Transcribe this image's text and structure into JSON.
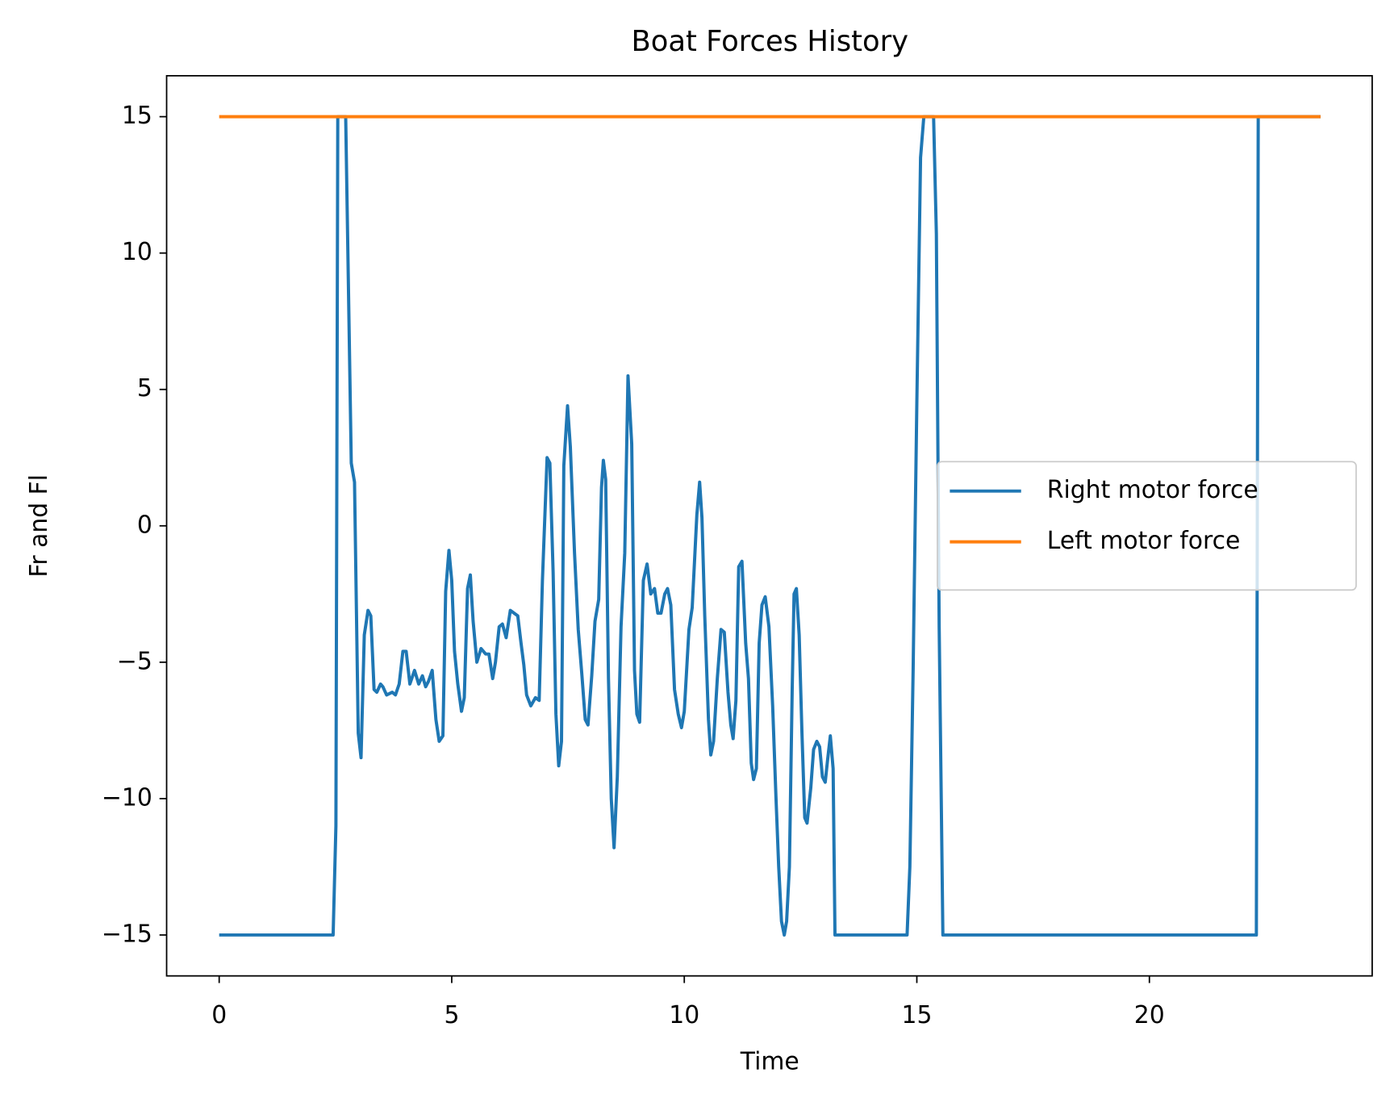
{
  "chart_data": {
    "type": "line",
    "title": "Boat Forces History",
    "x_label": "Time",
    "y_label": "Fr and Fl",
    "xlim": [
      -1.13,
      24.79
    ],
    "ylim": [
      -16.5,
      16.5
    ],
    "xticks": [
      0,
      5,
      10,
      15,
      20
    ],
    "yticks": [
      {
        "value": -15,
        "label": "−15"
      },
      {
        "value": -10,
        "label": "−10"
      },
      {
        "value": -5,
        "label": "−5"
      },
      0,
      5,
      10,
      15
    ],
    "grid": false,
    "legend_position": "center right",
    "series": [
      {
        "name": "Right motor force",
        "color": "#1f77b4",
        "x": [
          0,
          2.45,
          2.51,
          2.55,
          2.72,
          2.84,
          2.91,
          2.99,
          3.05,
          3.12,
          3.2,
          3.26,
          3.33,
          3.39,
          3.47,
          3.52,
          3.6,
          3.72,
          3.79,
          3.87,
          3.95,
          4.02,
          4.1,
          4.2,
          4.29,
          4.37,
          4.44,
          4.5,
          4.58,
          4.66,
          4.73,
          4.81,
          4.87,
          4.94,
          5.0,
          5.06,
          5.13,
          5.21,
          5.27,
          5.34,
          5.4,
          5.46,
          5.54,
          5.63,
          5.73,
          5.8,
          5.88,
          5.94,
          6.02,
          6.09,
          6.17,
          6.26,
          6.34,
          6.42,
          6.49,
          6.55,
          6.61,
          6.7,
          6.8,
          6.88,
          6.95,
          7.05,
          7.11,
          7.18,
          7.24,
          7.3,
          7.36,
          7.41,
          7.49,
          7.55,
          7.64,
          7.72,
          7.8,
          7.87,
          7.93,
          8.01,
          8.08,
          8.16,
          8.22,
          8.26,
          8.31,
          8.37,
          8.43,
          8.49,
          8.56,
          8.64,
          8.72,
          8.79,
          8.87,
          8.93,
          8.98,
          9.04,
          9.12,
          9.2,
          9.28,
          9.36,
          9.43,
          9.5,
          9.58,
          9.64,
          9.71,
          9.79,
          9.87,
          9.94,
          10.0,
          10.1,
          10.17,
          10.27,
          10.33,
          10.38,
          10.44,
          10.52,
          10.57,
          10.63,
          10.71,
          10.79,
          10.86,
          10.94,
          11.0,
          11.05,
          11.11,
          11.17,
          11.24,
          11.32,
          11.38,
          11.44,
          11.49,
          11.55,
          11.61,
          11.67,
          11.74,
          11.82,
          11.9,
          11.97,
          12.03,
          12.09,
          12.15,
          12.2,
          12.26,
          12.32,
          12.36,
          12.41,
          12.47,
          12.53,
          12.59,
          12.64,
          12.72,
          12.78,
          12.85,
          12.91,
          12.97,
          13.03,
          13.08,
          13.14,
          13.2,
          13.24,
          14.79,
          14.85,
          14.92,
          15.0,
          15.08,
          15.15,
          15.36,
          15.42,
          15.48,
          15.56,
          22.3,
          22.34,
          23.68
        ],
        "values": [
          -15,
          -15,
          -11,
          15,
          15,
          2.3,
          1.6,
          -7.6,
          -8.5,
          -4.0,
          -3.1,
          -3.3,
          -6.0,
          -6.1,
          -5.8,
          -5.9,
          -6.2,
          -6.1,
          -6.2,
          -5.8,
          -4.6,
          -4.6,
          -5.8,
          -5.3,
          -5.8,
          -5.5,
          -5.9,
          -5.7,
          -5.3,
          -7.1,
          -7.9,
          -7.7,
          -2.4,
          -0.9,
          -2.0,
          -4.6,
          -5.8,
          -6.8,
          -6.3,
          -2.3,
          -1.8,
          -3.5,
          -5.0,
          -4.5,
          -4.7,
          -4.7,
          -5.6,
          -5.0,
          -3.7,
          -3.6,
          -4.1,
          -3.1,
          -3.2,
          -3.3,
          -4.3,
          -5.1,
          -6.2,
          -6.6,
          -6.3,
          -6.4,
          -2.0,
          2.5,
          2.3,
          -1.7,
          -6.9,
          -8.8,
          -7.9,
          2.2,
          4.4,
          2.9,
          -1.0,
          -3.8,
          -5.5,
          -7.1,
          -7.3,
          -5.5,
          -3.5,
          -2.7,
          1.4,
          2.4,
          1.7,
          -5.6,
          -10.0,
          -11.8,
          -9.2,
          -3.7,
          -1.0,
          5.5,
          3.0,
          -5.3,
          -6.9,
          -7.2,
          -2.0,
          -1.4,
          -2.5,
          -2.3,
          -3.2,
          -3.2,
          -2.5,
          -2.3,
          -2.9,
          -6.0,
          -6.9,
          -7.4,
          -6.8,
          -3.8,
          -3.0,
          0.4,
          1.6,
          0.3,
          -3.3,
          -7.1,
          -8.4,
          -7.9,
          -5.6,
          -3.8,
          -3.9,
          -6.1,
          -7.3,
          -7.8,
          -6.4,
          -1.5,
          -1.3,
          -4.3,
          -5.6,
          -8.7,
          -9.3,
          -8.9,
          -4.3,
          -2.9,
          -2.6,
          -3.7,
          -6.6,
          -9.9,
          -12.5,
          -14.5,
          -15.0,
          -14.5,
          -12.5,
          -6.0,
          -2.5,
          -2.3,
          -4.0,
          -7.6,
          -10.7,
          -10.9,
          -9.6,
          -8.2,
          -7.9,
          -8.1,
          -9.2,
          -9.4,
          -8.6,
          -7.7,
          -8.9,
          -15,
          -15,
          -12.5,
          -5.3,
          4.5,
          13.5,
          15,
          15,
          10.7,
          -3.7,
          -15,
          -15,
          15,
          15
        ]
      },
      {
        "name": "Left motor force",
        "color": "#ff7f0e",
        "x": [
          0,
          23.68
        ],
        "values": [
          15,
          15
        ]
      }
    ]
  }
}
